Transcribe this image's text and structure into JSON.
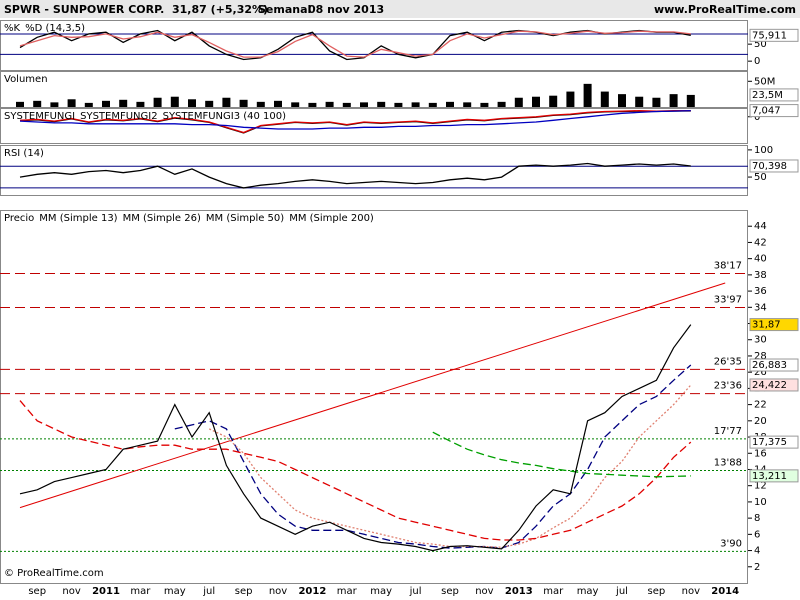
{
  "header": {
    "symbol": "SPWR - SUNPOWER CORP.",
    "quote": "31,87 (+5,32%)",
    "period": "Semanal",
    "date": "08 nov 2013",
    "site": "www.ProRealTime.com"
  },
  "footer": "© ProRealTime.com",
  "chart_data": [
    {
      "type": "line",
      "title": null,
      "series": [
        {
          "name": "%K",
          "color": "#000000",
          "values": [
            40,
            70,
            85,
            60,
            80,
            85,
            55,
            80,
            90,
            60,
            85,
            45,
            20,
            5,
            10,
            35,
            70,
            85,
            30,
            5,
            10,
            45,
            20,
            10,
            20,
            75,
            85,
            60,
            85,
            90,
            85,
            75,
            85,
            90,
            80,
            85,
            90,
            85,
            85,
            75.911,
            null,
            null
          ]
        },
        {
          "name": "%D (14,3,5)",
          "color": "#e06060",
          "values": [
            45,
            60,
            75,
            70,
            72,
            80,
            65,
            72,
            85,
            70,
            78,
            55,
            30,
            12,
            12,
            28,
            58,
            78,
            45,
            15,
            12,
            35,
            25,
            15,
            20,
            60,
            80,
            68,
            78,
            88,
            86,
            78,
            82,
            88,
            82,
            84,
            88,
            86,
            86,
            80,
            null,
            null
          ]
        }
      ],
      "ylim": [
        -26,
        121
      ],
      "yticks": [
        0,
        50
      ],
      "bands": [
        20,
        80
      ],
      "tags": [
        {
          "value": 75.911,
          "label": "75,911",
          "color": "#ffffff"
        }
      ]
    },
    {
      "type": "bar",
      "title": "Volumen",
      "color": "#000000",
      "values": [
        10000000,
        12000000,
        9000000,
        15000000,
        8000000,
        12000000,
        14000000,
        10000000,
        18000000,
        20000000,
        15000000,
        12000000,
        18000000,
        14000000,
        10000000,
        12000000,
        9000000,
        8000000,
        10000000,
        8000000,
        9000000,
        10000000,
        8000000,
        9000000,
        8000000,
        10000000,
        9000000,
        8000000,
        10000000,
        18000000,
        20000000,
        22000000,
        30000000,
        45000000,
        30000000,
        25000000,
        20000000,
        18000000,
        25000000,
        23500000,
        null,
        null
      ],
      "ylim": [
        0,
        70000000
      ],
      "yticks": [
        {
          "value": 50000000,
          "label": "50M"
        }
      ],
      "tags": [
        {
          "value": 23500000,
          "label": "23,5M",
          "color": "#ffffff"
        }
      ]
    },
    {
      "type": "line",
      "title": null,
      "series": [
        {
          "name": "SYSTEMFUNGI",
          "color": "#000000",
          "values": [
            -4.5,
            -3.5,
            -5.5,
            -2.5,
            -6.5,
            -3.5,
            -4.5,
            -2.5,
            -5.5,
            -1.5,
            -3.5,
            -6.5,
            -12.5,
            -18.5,
            -10.5,
            -8.5,
            -6.5,
            -7.5,
            -6.5,
            -9.5,
            -6.5,
            -7.5,
            -6.5,
            -5.5,
            -7.5,
            -5.5,
            -3.5,
            -4.5,
            -2.5,
            -1.5,
            -0.5,
            1.5,
            2.5,
            4.5,
            5.5,
            6,
            6.5,
            6,
            6.5,
            6.6,
            null,
            null
          ]
        },
        {
          "name": "SYSTEMFUNGI2",
          "color": "#e00000",
          "values": [
            -4,
            -3,
            -5,
            -2,
            -6,
            -3,
            -4,
            -2,
            -5,
            -1,
            -3,
            -6,
            -12,
            -18,
            -10,
            -8,
            -6,
            -7,
            -6,
            -9,
            -6,
            -7,
            -6,
            -5,
            -7,
            -5,
            -3,
            -4,
            -2,
            -1,
            0,
            2,
            3,
            5,
            6,
            6.5,
            7,
            6.5,
            7,
            7.047,
            null,
            null
          ]
        },
        {
          "name": "SYSTEMFUNGI3 (40 100)",
          "color": "#0000c0",
          "values": [
            -5,
            -6,
            -7,
            -7,
            -8,
            -8,
            -8,
            -8,
            -8,
            -8,
            -9,
            -9,
            -10,
            -12,
            -13,
            -14,
            -14,
            -14,
            -13,
            -13,
            -12,
            -12,
            -11,
            -11,
            -10,
            -10,
            -9,
            -9,
            -8,
            -7,
            -6,
            -4,
            -2,
            0,
            2,
            4,
            5,
            6,
            6.5,
            7,
            null,
            null
          ]
        }
      ],
      "ylim": [
        -30,
        10
      ],
      "yticks": [
        0
      ],
      "tags": [
        {
          "value": 7.047,
          "label": "7,047",
          "color": "#ffffff"
        }
      ]
    },
    {
      "type": "line",
      "title": "RSI (14)",
      "series": [
        {
          "name": null,
          "color": "#000000",
          "values": [
            50,
            55,
            58,
            55,
            60,
            62,
            58,
            62,
            70,
            55,
            65,
            50,
            38,
            30,
            35,
            38,
            42,
            45,
            42,
            38,
            40,
            42,
            40,
            38,
            40,
            45,
            48,
            45,
            50,
            70,
            72,
            70,
            72,
            75,
            70,
            72,
            74,
            72,
            74,
            70.398,
            null,
            null
          ]
        }
      ],
      "ylim": [
        17,
        109
      ],
      "yticks": [
        50,
        100
      ],
      "bands": [
        30,
        70
      ],
      "tags": [
        {
          "value": 70.398,
          "label": "70,398",
          "color": "#ffffff"
        }
      ]
    },
    {
      "type": "line",
      "title": "Precio",
      "categories": [
        null,
        "sep",
        null,
        "nov",
        null,
        "2011",
        null,
        "mar",
        null,
        "may",
        null,
        "jul",
        null,
        "sep",
        null,
        "nov",
        null,
        "2012",
        null,
        "mar",
        null,
        "may",
        null,
        "jul",
        null,
        "sep",
        null,
        "nov",
        null,
        "2013",
        null,
        "mar",
        null,
        "may",
        null,
        "jul",
        null,
        "sep",
        null,
        "nov",
        null,
        "2014"
      ],
      "series": [
        {
          "name": "MM (Simple 13)",
          "color": "#000080",
          "values": [
            null,
            null,
            null,
            null,
            null,
            null,
            null,
            null,
            null,
            19,
            19.5,
            20,
            19,
            15,
            11,
            8.5,
            7,
            6.5,
            6.5,
            6.5,
            6,
            5.5,
            5,
            4.8,
            4.5,
            4.3,
            4.4,
            4.5,
            4.3,
            5,
            7,
            9.5,
            11,
            14,
            18,
            20,
            22,
            23,
            25,
            26.883,
            null,
            null
          ]
        },
        {
          "name": "MM (Simple 26)",
          "color": "#e08070",
          "values": [
            null,
            null,
            null,
            null,
            null,
            null,
            null,
            null,
            null,
            null,
            null,
            19,
            18,
            16,
            13,
            11,
            9,
            8,
            7.5,
            7,
            6.5,
            6,
            5.5,
            5,
            4.8,
            4.5,
            4.5,
            4.5,
            4.4,
            4.8,
            5.5,
            6.8,
            8,
            10,
            13,
            15,
            18,
            20,
            22,
            24.422,
            null,
            null
          ]
        },
        {
          "name": "MM (Simple 50)",
          "color": "#e00000",
          "values": [
            22.5,
            20,
            19,
            18,
            17.5,
            17,
            16.5,
            16.8,
            17,
            17,
            16.5,
            16.5,
            16.5,
            16,
            15.5,
            15,
            14,
            13,
            12,
            11,
            10,
            9,
            8,
            7.5,
            7,
            6.5,
            6,
            5.5,
            5.3,
            5.3,
            5.5,
            6,
            6.5,
            7.5,
            8.5,
            9.5,
            11,
            13,
            15.5,
            17.375,
            null,
            null
          ]
        },
        {
          "name": "MM (Simple 200)",
          "color": "#00a000",
          "values": [
            null,
            null,
            null,
            null,
            null,
            null,
            null,
            null,
            null,
            null,
            null,
            null,
            null,
            null,
            null,
            null,
            null,
            null,
            null,
            null,
            null,
            null,
            null,
            null,
            18.6,
            17.5,
            16.5,
            15.8,
            15.2,
            14.8,
            14.5,
            14.1,
            13.8,
            13.5,
            13.4,
            13.3,
            13.2,
            13.1,
            13.15,
            13.211,
            null,
            null
          ]
        },
        {
          "name": null,
          "color": "#000000",
          "values": [
            11,
            11.5,
            12.5,
            13,
            13.5,
            14,
            16.5,
            17,
            17.5,
            22,
            18,
            21,
            14.5,
            11,
            8,
            7,
            6,
            7,
            7.5,
            6.5,
            5.5,
            5,
            4.8,
            4.5,
            4,
            4.5,
            4.6,
            4.4,
            4.2,
            6.5,
            9.5,
            11.5,
            11,
            20,
            21,
            23,
            24,
            25,
            29,
            31.87,
            null,
            null
          ]
        }
      ],
      "trendline": {
        "color": "#e00000",
        "values": [
          9.3,
          37
        ]
      },
      "levels": [
        {
          "value": 38.17,
          "label": "38'17",
          "color": "#c00000"
        },
        {
          "value": 33.97,
          "label": "33'97",
          "color": "#c00000"
        },
        {
          "value": 26.35,
          "label": "26'35",
          "color": "#c00000"
        },
        {
          "value": 23.36,
          "label": "23'36",
          "color": "#c00000"
        },
        {
          "value": 17.77,
          "label": "17'77",
          "color": "#008000"
        },
        {
          "value": 13.88,
          "label": "13'88",
          "color": "#008000"
        },
        {
          "value": 3.9,
          "label": "3'90",
          "color": "#008000"
        }
      ],
      "ylim": [
        0,
        46
      ],
      "yticks": [
        2,
        4,
        6,
        8,
        10,
        12,
        14,
        16,
        18,
        20,
        22,
        24,
        26,
        28,
        30,
        32,
        34,
        36,
        38,
        40,
        42,
        44
      ],
      "tags": [
        {
          "value": 31.87,
          "label": "31,87",
          "color": "#ffd700"
        },
        {
          "value": 26.883,
          "label": "26,883",
          "color": "#ffffff"
        },
        {
          "value": 24.422,
          "label": "24,422",
          "color": "#ffe0e0"
        },
        {
          "value": 17.375,
          "label": "17,375",
          "color": "#ffffff"
        },
        {
          "value": 13.211,
          "label": "13,211",
          "color": "#e0ffe0"
        }
      ]
    }
  ]
}
